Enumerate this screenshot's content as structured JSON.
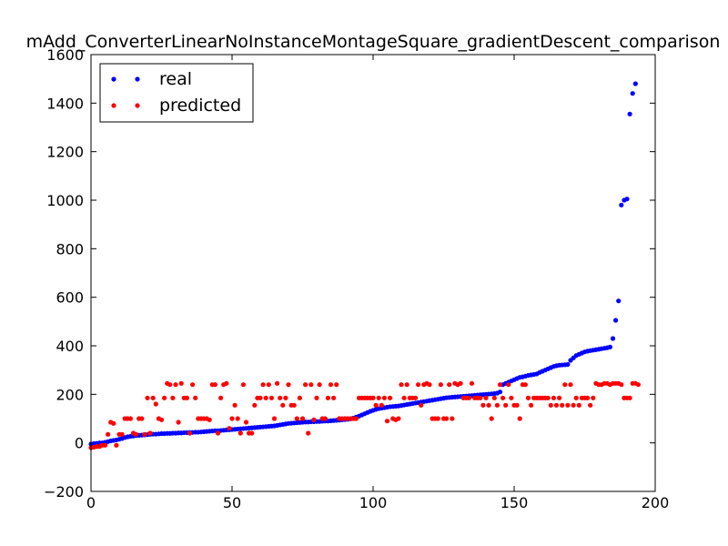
{
  "chart_data": {
    "type": "scatter",
    "title": "mAdd_ConverterLinearNoInstanceMontageSquare_gradientDescent_comparison",
    "xlabel": "",
    "ylabel": "",
    "xlim": [
      0,
      200
    ],
    "ylim": [
      -200,
      1600
    ],
    "xticks": [
      "0",
      "50",
      "100",
      "150",
      "200"
    ],
    "yticks": [
      "−200",
      "0",
      "200",
      "400",
      "600",
      "800",
      "1000",
      "1200",
      "1400",
      "1600"
    ],
    "grid": false,
    "legend_position": "top-left",
    "series": [
      {
        "name": "real",
        "color": "#0000ff",
        "values": [
          -5,
          -3,
          -2,
          0,
          0,
          2,
          5,
          8,
          10,
          12,
          15,
          18,
          22,
          25,
          27,
          28,
          30,
          31,
          32,
          33,
          34,
          35,
          36,
          36,
          37,
          38,
          38,
          39,
          39,
          40,
          40,
          41,
          41,
          42,
          42,
          43,
          43,
          44,
          44,
          45,
          46,
          47,
          48,
          49,
          50,
          50,
          51,
          52,
          53,
          54,
          55,
          56,
          57,
          58,
          59,
          60,
          61,
          62,
          63,
          64,
          65,
          66,
          67,
          68,
          69,
          70,
          72,
          74,
          76,
          78,
          80,
          81,
          82,
          83,
          84,
          85,
          86,
          86,
          87,
          87,
          88,
          88,
          89,
          90,
          90,
          91,
          92,
          93,
          94,
          95,
          96,
          97,
          99,
          102,
          106,
          110,
          115,
          120,
          125,
          130,
          134,
          138,
          141,
          143,
          145,
          147,
          149,
          150,
          151,
          152,
          154,
          156,
          158,
          160,
          162,
          164,
          166,
          168,
          170,
          172,
          174,
          176,
          178,
          180,
          182,
          184,
          186,
          187,
          188,
          189,
          190,
          191,
          192,
          193,
          194,
          195,
          196,
          197,
          198,
          199,
          200,
          201,
          202,
          203,
          205,
          210,
          240,
          245,
          250,
          255,
          260,
          265,
          270,
          272,
          275,
          278,
          280,
          282,
          284,
          290,
          295,
          300,
          305,
          310,
          315,
          318,
          320,
          321,
          322,
          323,
          340,
          350,
          360,
          365,
          370,
          375,
          378,
          380,
          382,
          384,
          386,
          388,
          390,
          392,
          395,
          430,
          505,
          585,
          980,
          1000,
          1005,
          1355,
          1440,
          1480
        ]
      },
      {
        "name": "predicted",
        "color": "#ff0000",
        "values": [
          -20,
          -18,
          -15,
          -15,
          -10,
          -10,
          35,
          85,
          80,
          -10,
          35,
          35,
          100,
          100,
          100,
          40,
          35,
          100,
          100,
          35,
          185,
          40,
          185,
          160,
          100,
          95,
          185,
          245,
          240,
          185,
          240,
          85,
          245,
          185,
          185,
          40,
          240,
          185,
          100,
          100,
          100,
          100,
          95,
          240,
          240,
          40,
          185,
          240,
          245,
          60,
          100,
          155,
          100,
          40,
          240,
          85,
          40,
          40,
          155,
          185,
          185,
          240,
          185,
          240,
          185,
          100,
          245,
          185,
          155,
          185,
          240,
          155,
          155,
          100,
          185,
          100,
          240,
          40,
          240,
          95,
          185,
          240,
          100,
          100,
          185,
          240,
          185,
          240,
          100,
          100,
          100,
          100,
          100,
          100,
          100,
          185,
          185,
          185,
          185,
          185,
          185,
          155,
          185,
          155,
          185,
          90,
          185,
          100,
          95,
          100,
          240,
          185,
          240,
          185,
          185,
          185,
          240,
          155,
          240,
          245,
          240,
          100,
          100,
          100,
          240,
          100,
          100,
          240,
          100,
          245,
          240,
          245,
          185,
          185,
          185,
          245,
          185,
          185,
          185,
          155,
          185,
          155,
          100,
          185,
          155,
          240,
          185,
          155,
          240,
          185,
          155,
          155,
          100,
          240,
          240,
          185,
          155,
          185,
          185,
          185,
          185,
          185,
          185,
          155,
          185,
          155,
          185,
          155,
          240,
          155,
          240,
          155,
          185,
          155,
          185,
          185,
          185,
          155,
          185,
          245,
          240,
          240,
          245,
          245,
          240,
          245,
          245,
          245,
          240,
          185,
          185,
          185,
          245,
          245,
          240
        ]
      }
    ]
  }
}
